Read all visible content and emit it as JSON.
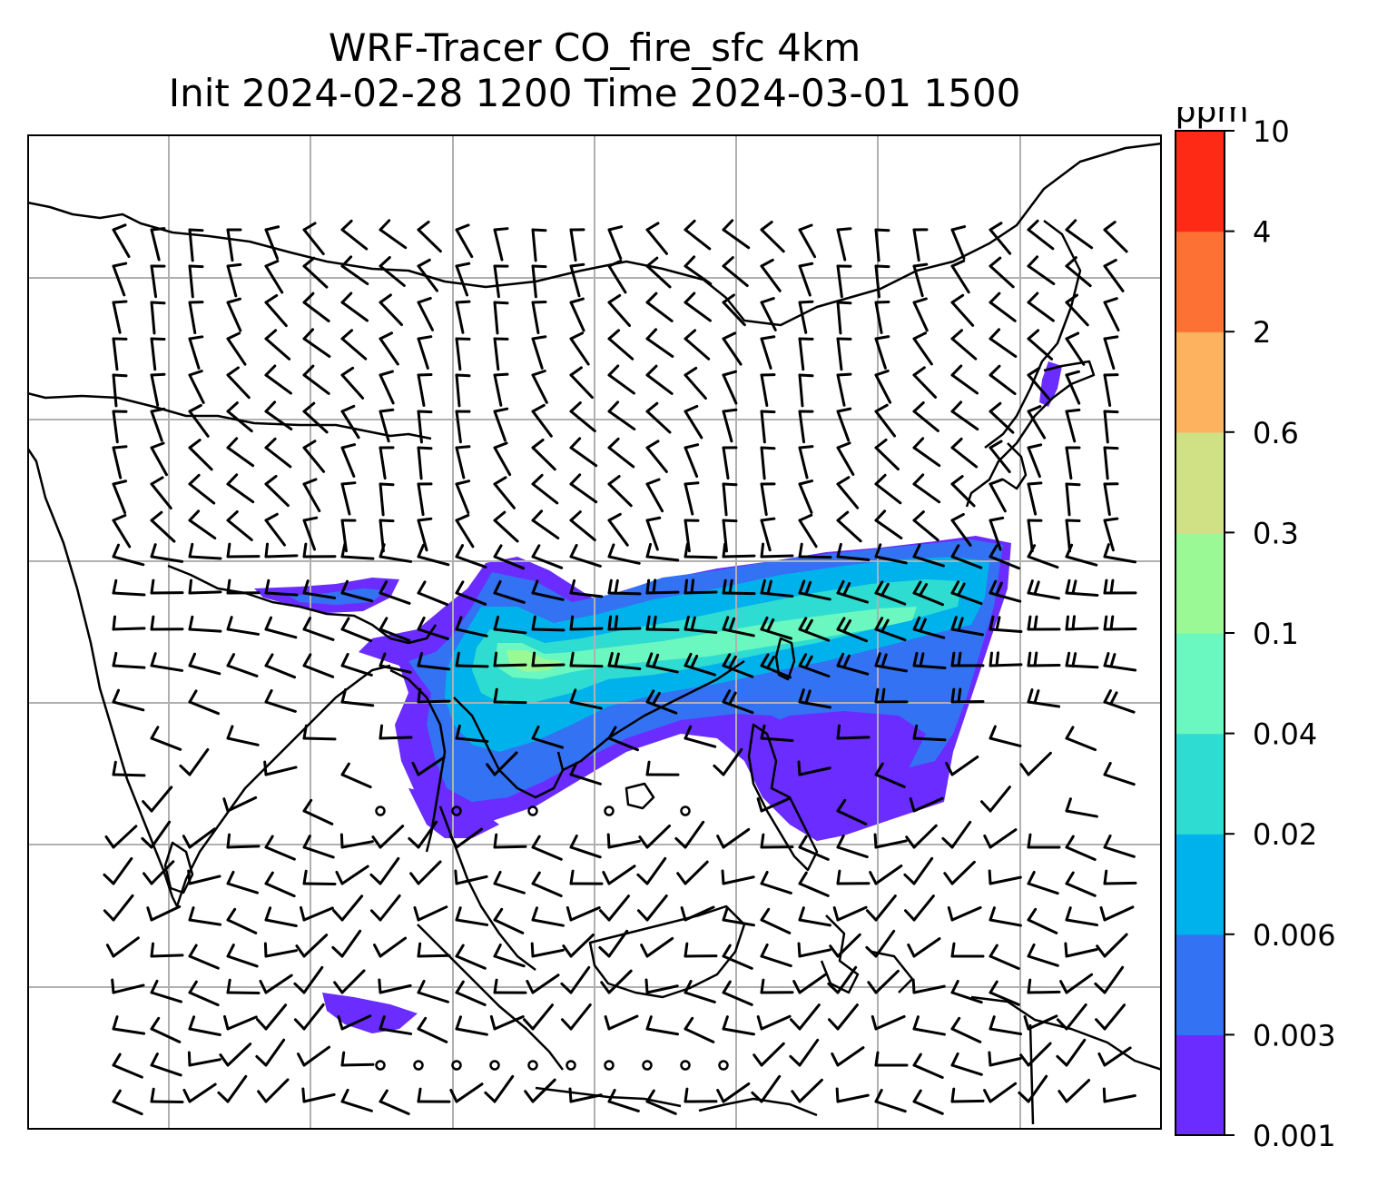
{
  "title": {
    "line1": "WRF-Tracer CO_fire_sfc 4km",
    "line2": "Init 2024-02-28 1200 Time 2024-03-01 1500"
  },
  "colorbar": {
    "unit": "ppm",
    "levels": [
      "0.001",
      "0.003",
      "0.006",
      "0.02",
      "0.04",
      "0.1",
      "0.3",
      "0.6",
      "2",
      "4",
      "10"
    ],
    "colors": [
      "#6a2cff",
      "#3372f2",
      "#00b2ec",
      "#2fdcd2",
      "#6af7c0",
      "#9af994",
      "#cfe184",
      "#fcb25f",
      "#fe7135",
      "#ff2a16"
    ]
  },
  "map": {
    "plume_colors": {
      "low": "#6a2cff",
      "mid": "#3372f2",
      "midhigh": "#00b2ec",
      "high": "#2fdcd2",
      "peak": "#6af7c0",
      "top": "#9af994"
    },
    "gridline_color": "#b0b0b0",
    "coastline_color": "#000000",
    "barb_color": "#000000"
  }
}
